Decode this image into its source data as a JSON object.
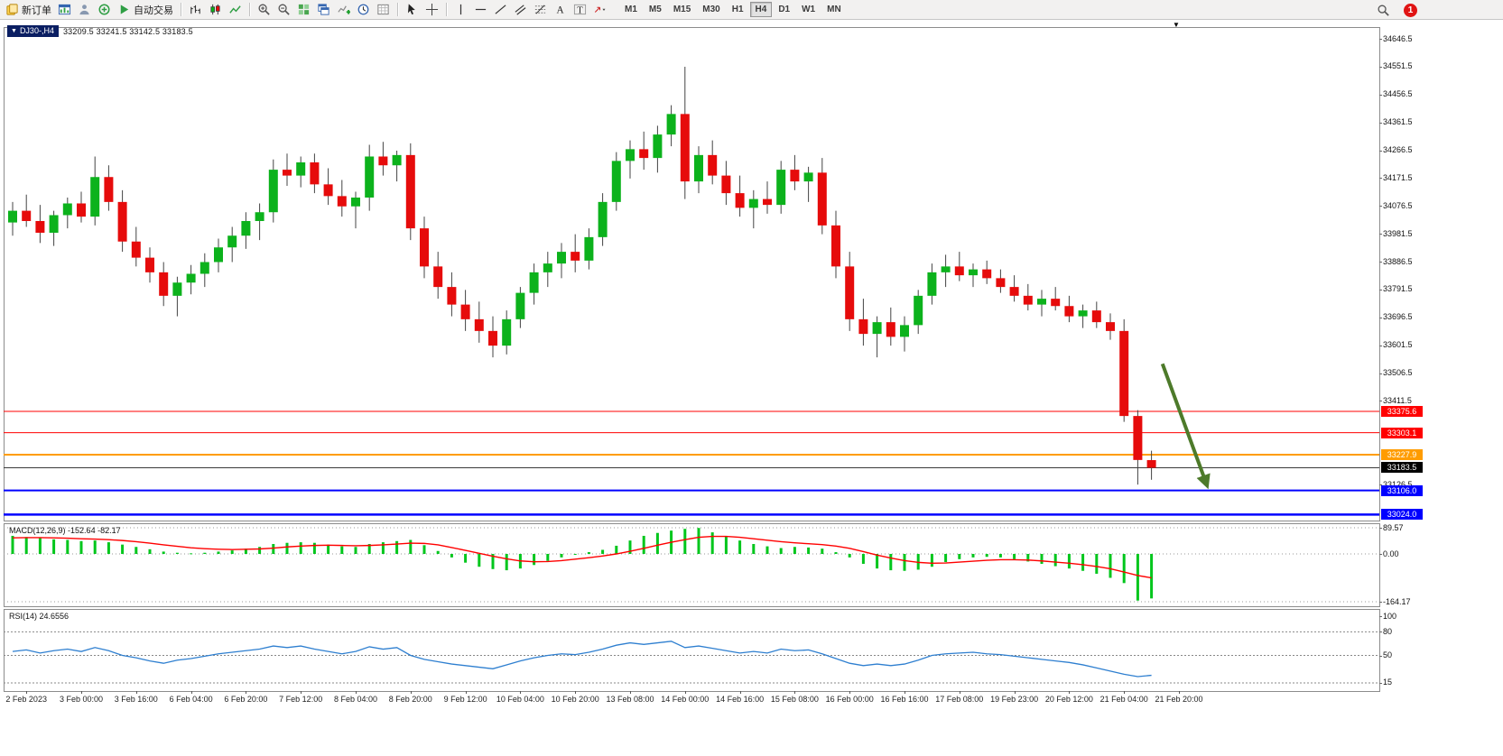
{
  "toolbar": {
    "new_order_label": "新订单",
    "auto_trading_label": "自动交易",
    "timeframes": [
      "M1",
      "M5",
      "M15",
      "M30",
      "H1",
      "H4",
      "D1",
      "W1",
      "MN"
    ],
    "active_timeframe": "H4",
    "notification_badge": "1"
  },
  "window": {
    "symbol_tab": "DJ30-,H4",
    "ohlc_text": "33209.5 33241.5 33142.5 33183.5"
  },
  "chart_data": {
    "type": "candlestick",
    "symbol": "DJ30-",
    "timeframe": "H4",
    "current_ohlc": {
      "open": 33209.5,
      "high": 33241.5,
      "low": 33142.5,
      "close": 33183.5
    },
    "current_price": 33183.5,
    "colors": {
      "bull": "#0cb21c",
      "bear": "#e60b0b"
    },
    "price_axis_ticks": [
      34646.5,
      34551.5,
      34456.5,
      34361.5,
      34266.5,
      34171.5,
      34076.5,
      33981.5,
      33886.5,
      33791.5,
      33696.5,
      33601.5,
      33506.5,
      33411.5,
      33126.5
    ],
    "horizontal_levels": [
      {
        "value": 33375.6,
        "color": "#ff0000",
        "line_width": 1
      },
      {
        "value": 33303.1,
        "color": "#ff0000",
        "line_width": 1
      },
      {
        "value": 33227.9,
        "color": "#ff9c00",
        "line_width": 2
      },
      {
        "value": 33106.0,
        "color": "#0000ff",
        "line_width": 2
      },
      {
        "value": 33024.0,
        "color": "#0000ff",
        "line_width": 2.5
      }
    ],
    "time_labels": [
      "2 Feb 2023",
      "3 Feb 00:00",
      "3 Feb 16:00",
      "6 Feb 04:00",
      "6 Feb 20:00",
      "7 Feb 12:00",
      "8 Feb 04:00",
      "8 Feb 20:00",
      "9 Feb 12:00",
      "10 Feb 04:00",
      "10 Feb 20:00",
      "13 Feb 08:00",
      "14 Feb 00:00",
      "14 Feb 16:00",
      "15 Feb 08:00",
      "16 Feb 00:00",
      "16 Feb 16:00",
      "17 Feb 08:00",
      "19 Feb 23:00",
      "20 Feb 12:00",
      "21 Feb 04:00",
      "21 Feb 20:00"
    ],
    "candles_ohlc": [
      [
        34020,
        34090,
        33975,
        34060
      ],
      [
        34060,
        34115,
        34005,
        34025
      ],
      [
        34025,
        34080,
        33950,
        33985
      ],
      [
        33985,
        34060,
        33940,
        34045
      ],
      [
        34045,
        34105,
        34000,
        34085
      ],
      [
        34085,
        34125,
        34020,
        34040
      ],
      [
        34040,
        34245,
        34010,
        34175
      ],
      [
        34175,
        34215,
        34060,
        34090
      ],
      [
        34090,
        34130,
        33920,
        33955
      ],
      [
        33955,
        34005,
        33870,
        33900
      ],
      [
        33900,
        33935,
        33815,
        33850
      ],
      [
        33850,
        33885,
        33735,
        33770
      ],
      [
        33770,
        33835,
        33700,
        33815
      ],
      [
        33815,
        33875,
        33775,
        33845
      ],
      [
        33845,
        33915,
        33800,
        33885
      ],
      [
        33885,
        33965,
        33850,
        33935
      ],
      [
        33935,
        34005,
        33885,
        33975
      ],
      [
        33975,
        34055,
        33930,
        34025
      ],
      [
        34025,
        34085,
        33960,
        34055
      ],
      [
        34055,
        34235,
        34020,
        34200
      ],
      [
        34200,
        34255,
        34145,
        34180
      ],
      [
        34180,
        34245,
        34140,
        34225
      ],
      [
        34225,
        34255,
        34120,
        34150
      ],
      [
        34150,
        34205,
        34080,
        34110
      ],
      [
        34110,
        34165,
        34040,
        34075
      ],
      [
        34075,
        34125,
        34000,
        34105
      ],
      [
        34105,
        34285,
        34060,
        34245
      ],
      [
        34245,
        34295,
        34180,
        34215
      ],
      [
        34215,
        34265,
        34160,
        34250
      ],
      [
        34250,
        34290,
        33960,
        34000
      ],
      [
        34000,
        34040,
        33830,
        33870
      ],
      [
        33870,
        33920,
        33760,
        33800
      ],
      [
        33800,
        33850,
        33700,
        33740
      ],
      [
        33740,
        33790,
        33650,
        33690
      ],
      [
        33690,
        33750,
        33610,
        33650
      ],
      [
        33650,
        33700,
        33560,
        33600
      ],
      [
        33600,
        33720,
        33570,
        33690
      ],
      [
        33690,
        33800,
        33660,
        33780
      ],
      [
        33780,
        33880,
        33740,
        33850
      ],
      [
        33850,
        33920,
        33800,
        33880
      ],
      [
        33880,
        33950,
        33830,
        33920
      ],
      [
        33920,
        33980,
        33850,
        33890
      ],
      [
        33890,
        34000,
        33860,
        33970
      ],
      [
        33970,
        34120,
        33940,
        34090
      ],
      [
        34090,
        34260,
        34060,
        34230
      ],
      [
        34230,
        34300,
        34170,
        34270
      ],
      [
        34270,
        34330,
        34200,
        34240
      ],
      [
        34240,
        34350,
        34190,
        34320
      ],
      [
        34320,
        34420,
        34280,
        34390
      ],
      [
        34390,
        34551,
        34100,
        34160
      ],
      [
        34160,
        34280,
        34120,
        34250
      ],
      [
        34250,
        34300,
        34150,
        34180
      ],
      [
        34180,
        34230,
        34080,
        34120
      ],
      [
        34120,
        34180,
        34040,
        34070
      ],
      [
        34070,
        34130,
        34000,
        34100
      ],
      [
        34100,
        34160,
        34050,
        34080
      ],
      [
        34080,
        34230,
        34050,
        34200
      ],
      [
        34200,
        34250,
        34130,
        34160
      ],
      [
        34160,
        34210,
        34090,
        34190
      ],
      [
        34190,
        34240,
        33980,
        34010
      ],
      [
        34010,
        34060,
        33830,
        33870
      ],
      [
        33870,
        33920,
        33650,
        33690
      ],
      [
        33690,
        33760,
        33600,
        33640
      ],
      [
        33640,
        33700,
        33560,
        33680
      ],
      [
        33680,
        33730,
        33600,
        33630
      ],
      [
        33630,
        33700,
        33580,
        33670
      ],
      [
        33670,
        33790,
        33640,
        33770
      ],
      [
        33770,
        33880,
        33740,
        33850
      ],
      [
        33850,
        33910,
        33800,
        33870
      ],
      [
        33870,
        33920,
        33820,
        33840
      ],
      [
        33840,
        33880,
        33800,
        33860
      ],
      [
        33860,
        33890,
        33810,
        33830
      ],
      [
        33830,
        33860,
        33780,
        33800
      ],
      [
        33800,
        33840,
        33750,
        33770
      ],
      [
        33770,
        33810,
        33720,
        33740
      ],
      [
        33740,
        33790,
        33700,
        33760
      ],
      [
        33760,
        33800,
        33720,
        33735
      ],
      [
        33735,
        33770,
        33680,
        33700
      ],
      [
        33700,
        33740,
        33660,
        33720
      ],
      [
        33720,
        33750,
        33660,
        33680
      ],
      [
        33680,
        33710,
        33620,
        33650
      ],
      [
        33650,
        33690,
        33340,
        33360
      ],
      [
        33360,
        33380,
        33126,
        33210
      ],
      [
        33209.5,
        33241.5,
        33142.5,
        33183.5
      ]
    ],
    "annotation_arrow": {
      "color": "#4d7a2a",
      "from": {
        "index": 83.8,
        "price": 33538
      },
      "to": {
        "index": 87.0,
        "price": 33129
      }
    },
    "indicators": {
      "macd": {
        "name": "MACD(12,26,9)",
        "values_text": "-152.64 -82.17",
        "axis_values": [
          89.57,
          0,
          -164.17
        ],
        "histogram_color": "#00c61c",
        "signal_color": "#ff0000",
        "histogram": [
          62,
          58,
          54,
          50,
          48,
          44,
          46,
          40,
          32,
          24,
          16,
          8,
          4,
          2,
          4,
          8,
          12,
          18,
          24,
          34,
          38,
          40,
          38,
          32,
          26,
          24,
          34,
          40,
          44,
          48,
          30,
          10,
          -12,
          -30,
          -44,
          -52,
          -56,
          -50,
          -38,
          -24,
          -12,
          -2,
          6,
          14,
          28,
          46,
          62,
          72,
          80,
          86,
          89,
          74,
          60,
          46,
          34,
          26,
          20,
          24,
          22,
          18,
          6,
          -12,
          -34,
          -50,
          -56,
          -58,
          -54,
          -44,
          -28,
          -18,
          -12,
          -10,
          -12,
          -18,
          -26,
          -34,
          -42,
          -50,
          -58,
          -68,
          -82,
          -100,
          -160,
          -152.64
        ],
        "signal": [
          55,
          56,
          56,
          55,
          54,
          52,
          51,
          49,
          46,
          42,
          37,
          31,
          26,
          21,
          18,
          16,
          15,
          16,
          17,
          20,
          24,
          27,
          29,
          30,
          29,
          28,
          29,
          31,
          34,
          37,
          36,
          31,
          22,
          12,
          2,
          -8,
          -17,
          -24,
          -27,
          -26,
          -23,
          -18,
          -13,
          -7,
          0,
          9,
          19,
          30,
          40,
          49,
          57,
          60,
          60,
          57,
          52,
          47,
          42,
          38,
          35,
          32,
          27,
          19,
          8,
          -4,
          -14,
          -23,
          -29,
          -32,
          -31,
          -28,
          -25,
          -22,
          -20,
          -20,
          -21,
          -24,
          -28,
          -32,
          -37,
          -43,
          -51,
          -62,
          -74,
          -82.17
        ]
      },
      "rsi": {
        "name": "RSI(14)",
        "value_text": "24.6556",
        "axis_values": [
          100,
          80,
          50,
          15
        ],
        "level_values": [
          80,
          50,
          15
        ],
        "line_color": "#2e7fd0",
        "values": [
          55,
          57,
          53,
          56,
          58,
          55,
          60,
          56,
          50,
          47,
          43,
          40,
          44,
          46,
          49,
          52,
          54,
          56,
          58,
          62,
          60,
          62,
          58,
          55,
          52,
          55,
          61,
          58,
          60,
          50,
          45,
          42,
          39,
          37,
          35,
          33,
          38,
          43,
          47,
          50,
          52,
          51,
          54,
          58,
          63,
          66,
          64,
          66,
          68,
          60,
          62,
          59,
          56,
          53,
          55,
          53,
          58,
          56,
          57,
          52,
          46,
          40,
          37,
          39,
          37,
          39,
          44,
          50,
          52,
          53,
          54,
          52,
          51,
          49,
          47,
          45,
          43,
          41,
          38,
          34,
          30,
          26,
          23,
          24.6556
        ]
      }
    }
  }
}
